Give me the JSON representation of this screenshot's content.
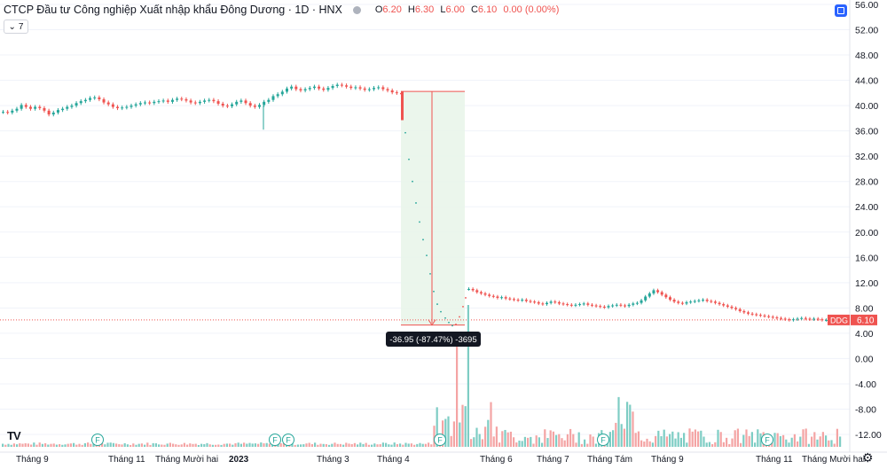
{
  "header": {
    "title": "CTCP Đầu tư Công nghiệp Xuất nhập khẩu Đông Dương · 1D · HNX",
    "o_label": "O",
    "o": "6.20",
    "h_label": "H",
    "h": "6.30",
    "l_label": "L",
    "l": "6.00",
    "c_label": "C",
    "c": "6.10",
    "change": "0.00 (0.00%)",
    "indicator_count": "7"
  },
  "colors": {
    "up": "#26a69a",
    "down": "#ef5350",
    "range_fill": "#e8f5e9",
    "range_line": "#ef5350",
    "up_vol": "#7ecdc4",
    "down_vol": "#f4a4a4"
  },
  "chart_data": {
    "type": "candlestick",
    "symbol": "DDG",
    "last_price": "6.10",
    "y_axis": {
      "ticks": [
        "56.00",
        "52.00",
        "48.00",
        "44.00",
        "40.00",
        "36.00",
        "32.00",
        "28.00",
        "24.00",
        "20.00",
        "16.00",
        "12.00",
        "8.00",
        "4.00",
        "0.00",
        "-4.00",
        "-8.00",
        "-12.00"
      ],
      "range": [
        -14,
        57
      ]
    },
    "x_axis": {
      "labels": [
        "Tháng 9",
        "Tháng 11",
        "Tháng Mười hai",
        "2023",
        "Tháng 3",
        "Tháng 4",
        "Tháng 6",
        "Tháng 7",
        "Tháng Tám",
        "Tháng 9",
        "Tháng 11",
        "Tháng Mười hai"
      ]
    },
    "price_series": {
      "segment1_close": [
        39.0,
        38.9,
        39.2,
        39.5,
        40.1,
        39.8,
        39.5,
        39.8,
        39.6,
        39.2,
        38.6,
        38.9,
        39.3,
        39.5,
        39.8,
        40.0,
        40.4,
        40.7,
        40.9,
        41.2,
        41.3,
        41.0,
        40.5,
        40.2,
        39.8,
        39.6,
        39.7,
        39.8,
        40.0,
        40.2,
        40.4,
        40.5,
        40.4,
        40.6,
        40.7,
        40.8,
        40.6,
        40.9,
        41.1,
        41.0,
        40.8,
        40.5,
        40.4,
        40.6,
        40.8,
        40.9,
        40.7,
        40.3,
        40.0,
        39.9,
        40.2,
        40.6,
        40.8,
        40.4,
        40.0,
        39.8,
        40.1,
        40.6,
        40.9,
        41.5,
        41.8,
        42.2,
        42.7,
        43.0,
        42.6,
        42.4,
        42.6,
        42.8,
        43.0,
        42.7,
        42.5,
        42.8,
        43.1,
        43.3,
        43.2,
        43.0,
        42.8,
        42.9,
        42.7,
        42.5,
        42.6,
        42.8,
        42.9,
        42.6,
        42.4,
        42.1,
        42.0,
        41.8
      ],
      "gap_drop": 37.7,
      "segment2_close": [
        11.0,
        10.8,
        10.5,
        10.3,
        10.1,
        9.9,
        9.8,
        9.6,
        9.7,
        9.5,
        9.4,
        9.3,
        9.2,
        9.3,
        9.1,
        9.0,
        8.9,
        8.7,
        8.6,
        8.8,
        9.0,
        8.9,
        8.7,
        8.6,
        8.5,
        8.4,
        8.5,
        8.6,
        8.7,
        8.5,
        8.4,
        8.3,
        8.2,
        8.1,
        8.3,
        8.4,
        8.5,
        8.4,
        8.3,
        8.5,
        8.7,
        8.8,
        9.2,
        9.8,
        10.3,
        10.8,
        10.5,
        10.1,
        9.7,
        9.3,
        9.0,
        8.8,
        8.7,
        8.9,
        9.0,
        9.1,
        9.2,
        9.3,
        9.1,
        9.0,
        8.8,
        8.6,
        8.4,
        8.2,
        8.0,
        7.8,
        7.5,
        7.3,
        7.1,
        7.0,
        6.9,
        6.8,
        6.7,
        6.6,
        6.5,
        6.4,
        6.3,
        6.2,
        6.1,
        6.2,
        6.3,
        6.4,
        6.3,
        6.2,
        6.3,
        6.2,
        6.1,
        6.1
      ]
    },
    "measure_tool": {
      "label": "-36.95 (-87.47%) -3695",
      "from_price": 42.25,
      "to_price": 5.3
    },
    "dividend_markers": [
      "F",
      "F",
      "F",
      "F",
      "F",
      "F"
    ]
  }
}
